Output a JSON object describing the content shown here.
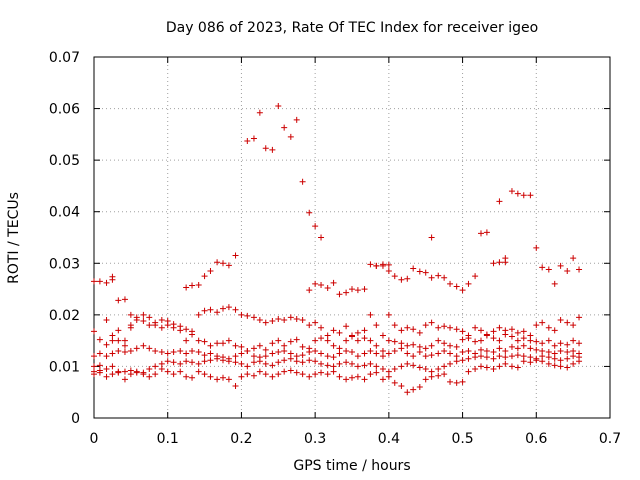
{
  "chart_data": {
    "type": "scatter",
    "title": "Day 086 of 2023, Rate Of TEC Index for receiver igeo",
    "xlabel": "GPS time / hours",
    "ylabel": "ROTI / TECUs",
    "xlim": [
      0,
      0.7
    ],
    "ylim": [
      0,
      0.07
    ],
    "x_ticks": [
      "0",
      "0.1",
      "0.2",
      "0.3",
      "0.4",
      "0.5",
      "0.6",
      "0.7"
    ],
    "y_ticks": [
      "0",
      "0.01",
      "0.02",
      "0.03",
      "0.04",
      "0.05",
      "0.06",
      "0.07"
    ],
    "grid": true,
    "marker": "+",
    "color": "#cc0000",
    "series": [
      {
        "x": [
          0.0,
          0.008,
          0.017,
          0.025,
          0.025,
          0.033,
          0.042,
          0.05,
          0.125,
          0.133,
          0.142,
          0.15,
          0.158,
          0.167,
          0.175,
          0.183,
          0.192,
          0.208,
          0.217,
          0.225,
          0.233,
          0.242,
          0.25,
          0.258,
          0.267,
          0.275,
          0.283,
          0.292,
          0.3,
          0.308,
          0.292,
          0.3,
          0.308,
          0.317,
          0.325,
          0.333,
          0.342,
          0.35,
          0.358,
          0.367,
          0.375,
          0.383,
          0.392,
          0.4,
          0.383,
          0.392,
          0.4,
          0.408,
          0.417,
          0.425,
          0.433,
          0.442,
          0.45,
          0.458,
          0.458,
          0.467,
          0.475,
          0.483,
          0.492,
          0.5,
          0.508,
          0.517,
          0.525,
          0.533,
          0.542,
          0.55,
          0.558,
          0.55,
          0.558,
          0.567,
          0.575,
          0.583,
          0.592,
          0.6,
          0.608,
          0.617,
          0.625,
          0.633,
          0.642,
          0.65,
          0.658,
          0.0,
          0.008,
          0.017,
          0.025,
          0.033,
          0.042,
          0.05,
          0.058,
          0.067,
          0.075,
          0.083,
          0.092,
          0.1,
          0.108,
          0.117,
          0.125,
          0.133,
          0.142,
          0.15,
          0.158,
          0.167,
          0.175,
          0.183,
          0.192,
          0.2,
          0.208,
          0.217,
          0.225,
          0.233,
          0.242,
          0.25,
          0.258,
          0.267,
          0.275,
          0.283,
          0.292,
          0.3,
          0.308,
          0.317,
          0.325,
          0.333,
          0.342,
          0.35,
          0.358,
          0.367,
          0.375,
          0.383,
          0.392,
          0.4,
          0.408,
          0.417,
          0.425,
          0.433,
          0.442,
          0.45,
          0.458,
          0.467,
          0.475,
          0.483,
          0.492,
          0.5,
          0.508,
          0.517,
          0.525,
          0.533,
          0.542,
          0.55,
          0.558,
          0.567,
          0.575,
          0.583,
          0.592,
          0.6,
          0.608,
          0.617,
          0.625,
          0.633,
          0.642,
          0.65,
          0.658,
          0.0,
          0.008,
          0.017,
          0.025,
          0.033,
          0.042,
          0.05,
          0.058,
          0.067,
          0.075,
          0.083,
          0.092,
          0.1,
          0.108,
          0.117,
          0.125,
          0.133,
          0.142,
          0.15,
          0.158,
          0.167,
          0.175,
          0.183,
          0.192,
          0.2,
          0.208,
          0.217,
          0.225,
          0.233,
          0.242,
          0.25,
          0.258,
          0.267,
          0.275,
          0.283,
          0.292,
          0.3,
          0.308,
          0.317,
          0.325,
          0.333,
          0.342,
          0.35,
          0.358,
          0.367,
          0.375,
          0.383,
          0.392,
          0.4,
          0.408,
          0.417,
          0.425,
          0.433,
          0.442,
          0.45,
          0.458,
          0.467,
          0.475,
          0.483,
          0.492,
          0.5,
          0.508,
          0.517,
          0.525,
          0.533,
          0.542,
          0.55,
          0.558,
          0.567,
          0.575,
          0.583,
          0.592,
          0.6,
          0.608,
          0.617,
          0.625,
          0.633,
          0.642,
          0.65,
          0.658,
          0.0,
          0.008,
          0.017,
          0.025,
          0.033,
          0.042,
          0.05,
          0.058,
          0.067,
          0.075,
          0.083,
          0.092,
          0.1,
          0.108,
          0.117,
          0.125,
          0.133,
          0.142,
          0.15,
          0.158,
          0.167,
          0.175,
          0.183,
          0.192,
          0.2,
          0.208,
          0.217,
          0.225,
          0.233,
          0.242,
          0.25,
          0.258,
          0.267,
          0.275,
          0.283,
          0.292,
          0.3,
          0.308,
          0.317,
          0.325,
          0.333,
          0.342,
          0.35,
          0.358,
          0.367,
          0.375,
          0.383,
          0.392,
          0.4,
          0.408,
          0.417,
          0.425,
          0.433,
          0.442,
          0.45,
          0.458,
          0.467,
          0.475,
          0.483,
          0.492,
          0.5,
          0.508,
          0.517,
          0.525,
          0.533,
          0.542,
          0.55,
          0.558,
          0.567,
          0.575,
          0.583,
          0.592,
          0.6,
          0.608,
          0.617,
          0.625,
          0.633,
          0.642,
          0.65,
          0.658,
          0.0,
          0.008,
          0.017,
          0.025,
          0.033,
          0.042,
          0.05,
          0.058,
          0.067,
          0.075,
          0.083,
          0.092,
          0.1,
          0.108,
          0.117,
          0.125,
          0.133,
          0.142,
          0.15,
          0.158,
          0.167,
          0.175,
          0.183,
          0.192,
          0.2,
          0.208,
          0.217,
          0.225,
          0.233,
          0.242,
          0.25,
          0.258,
          0.267,
          0.275,
          0.283,
          0.292,
          0.3,
          0.308,
          0.317,
          0.325,
          0.333,
          0.342,
          0.35,
          0.358,
          0.367,
          0.375,
          0.383,
          0.392,
          0.4,
          0.408,
          0.417,
          0.425,
          0.433,
          0.442,
          0.45,
          0.458,
          0.467,
          0.475,
          0.483,
          0.492,
          0.5,
          0.508,
          0.517,
          0.525,
          0.533,
          0.542,
          0.55,
          0.558,
          0.567,
          0.575,
          0.583,
          0.592,
          0.6,
          0.608,
          0.617,
          0.625,
          0.633,
          0.642,
          0.65,
          0.658,
          0.0,
          0.008,
          0.017,
          0.025,
          0.033,
          0.042,
          0.05,
          0.058,
          0.067,
          0.075,
          0.083,
          0.092,
          0.1,
          0.108,
          0.117,
          0.125,
          0.133,
          0.142,
          0.15,
          0.158,
          0.167,
          0.175,
          0.183,
          0.192,
          0.2,
          0.208,
          0.217,
          0.225,
          0.233,
          0.242,
          0.25,
          0.258,
          0.267,
          0.275,
          0.283,
          0.292,
          0.3,
          0.308,
          0.317,
          0.325,
          0.333,
          0.342,
          0.35,
          0.358,
          0.367,
          0.375,
          0.383,
          0.392,
          0.4,
          0.408,
          0.417,
          0.425,
          0.433,
          0.442,
          0.45,
          0.458,
          0.467,
          0.475,
          0.483,
          0.492,
          0.5,
          0.508,
          0.517,
          0.525,
          0.533,
          0.542,
          0.55,
          0.558,
          0.567,
          0.575,
          0.583,
          0.592,
          0.6,
          0.608,
          0.617,
          0.625,
          0.633,
          0.642,
          0.65,
          0.658
        ],
        "y": [
          0.0265,
          0.0265,
          0.0262,
          0.0268,
          0.0274,
          0.0228,
          0.023,
          0.02,
          0.0253,
          0.0257,
          0.0258,
          0.0275,
          0.0285,
          0.0302,
          0.03,
          0.0296,
          0.0315,
          0.0537,
          0.0542,
          0.0592,
          0.0523,
          0.052,
          0.0605,
          0.0563,
          0.0545,
          0.0578,
          0.0458,
          0.0398,
          0.0372,
          0.035,
          0.0248,
          0.026,
          0.0258,
          0.0252,
          0.0262,
          0.024,
          0.0243,
          0.025,
          0.0248,
          0.025,
          0.0298,
          0.0295,
          0.0298,
          0.0285,
          0.0295,
          0.0295,
          0.0297,
          0.0275,
          0.0268,
          0.027,
          0.029,
          0.0284,
          0.0282,
          0.035,
          0.0272,
          0.0276,
          0.0272,
          0.026,
          0.0255,
          0.0248,
          0.026,
          0.0275,
          0.0358,
          0.036,
          0.03,
          0.0302,
          0.031,
          0.042,
          0.0302,
          0.044,
          0.0435,
          0.0432,
          0.0432,
          0.033,
          0.0292,
          0.0288,
          0.026,
          0.0295,
          0.0285,
          0.031,
          0.0288,
          0.0168,
          0.0152,
          0.0142,
          0.015,
          0.017,
          0.014,
          0.0175,
          0.019,
          0.0188,
          0.018,
          0.018,
          0.0175,
          0.0188,
          0.0182,
          0.017,
          0.015,
          0.0162,
          0.02,
          0.0208,
          0.021,
          0.0205,
          0.0212,
          0.0215,
          0.021,
          0.02,
          0.0198,
          0.0195,
          0.019,
          0.0185,
          0.0188,
          0.0192,
          0.019,
          0.0195,
          0.0192,
          0.019,
          0.018,
          0.0185,
          0.0175,
          0.016,
          0.017,
          0.0165,
          0.0178,
          0.016,
          0.0165,
          0.017,
          0.02,
          0.018,
          0.016,
          0.02,
          0.018,
          0.017,
          0.0175,
          0.0172,
          0.0165,
          0.018,
          0.0185,
          0.0175,
          0.0178,
          0.0175,
          0.0172,
          0.0168,
          0.016,
          0.0175,
          0.017,
          0.0162,
          0.0168,
          0.0175,
          0.017,
          0.0172,
          0.0165,
          0.0168,
          0.016,
          0.018,
          0.0185,
          0.0175,
          0.017,
          0.019,
          0.0185,
          0.018,
          0.0195,
          0.012,
          0.0125,
          0.019,
          0.016,
          0.015,
          0.015,
          0.018,
          0.0195,
          0.02,
          0.0195,
          0.0185,
          0.019,
          0.018,
          0.0175,
          0.0178,
          0.0172,
          0.0168,
          0.015,
          0.0148,
          0.014,
          0.0145,
          0.0145,
          0.015,
          0.014,
          0.0138,
          0.013,
          0.0135,
          0.014,
          0.0132,
          0.0145,
          0.015,
          0.014,
          0.0148,
          0.0152,
          0.0138,
          0.0135,
          0.015,
          0.0155,
          0.015,
          0.014,
          0.0135,
          0.015,
          0.0158,
          0.015,
          0.0155,
          0.015,
          0.014,
          0.013,
          0.015,
          0.0148,
          0.0145,
          0.014,
          0.0142,
          0.0138,
          0.0135,
          0.014,
          0.015,
          0.0145,
          0.014,
          0.0138,
          0.0152,
          0.0155,
          0.0148,
          0.015,
          0.016,
          0.0155,
          0.015,
          0.0162,
          0.0158,
          0.015,
          0.0155,
          0.015,
          0.0148,
          0.0145,
          0.015,
          0.014,
          0.0145,
          0.0142,
          0.015,
          0.0145,
          0.01,
          0.0102,
          0.012,
          0.0125,
          0.013,
          0.0128,
          0.013,
          0.0135,
          0.014,
          0.0135,
          0.013,
          0.0128,
          0.0125,
          0.0128,
          0.013,
          0.0125,
          0.013,
          0.0128,
          0.0122,
          0.0125,
          0.012,
          0.0118,
          0.0115,
          0.012,
          0.0125,
          0.013,
          0.012,
          0.0118,
          0.012,
          0.0125,
          0.0128,
          0.013,
          0.0125,
          0.012,
          0.0122,
          0.0128,
          0.013,
          0.0125,
          0.012,
          0.0118,
          0.0125,
          0.013,
          0.0128,
          0.012,
          0.0125,
          0.013,
          0.0125,
          0.012,
          0.0125,
          0.013,
          0.0135,
          0.0125,
          0.012,
          0.0128,
          0.012,
          0.0122,
          0.0125,
          0.013,
          0.0125,
          0.012,
          0.0128,
          0.013,
          0.0125,
          0.0132,
          0.013,
          0.0128,
          0.0135,
          0.013,
          0.0138,
          0.0135,
          0.014,
          0.0135,
          0.0132,
          0.013,
          0.0128,
          0.0125,
          0.013,
          0.0128,
          0.013,
          0.0125,
          0.009,
          0.0088,
          0.0095,
          0.01,
          0.0088,
          0.009,
          0.0092,
          0.0088,
          0.0085,
          0.0095,
          0.01,
          0.0105,
          0.011,
          0.0108,
          0.0105,
          0.011,
          0.0108,
          0.0105,
          0.011,
          0.0112,
          0.0115,
          0.0112,
          0.011,
          0.0108,
          0.0105,
          0.01,
          0.0108,
          0.011,
          0.0105,
          0.0102,
          0.0108,
          0.0112,
          0.0115,
          0.011,
          0.0108,
          0.0112,
          0.011,
          0.0105,
          0.0102,
          0.01,
          0.0105,
          0.0108,
          0.0105,
          0.01,
          0.0102,
          0.0105,
          0.01,
          0.0095,
          0.009,
          0.0095,
          0.01,
          0.0105,
          0.0102,
          0.0098,
          0.0095,
          0.009,
          0.0095,
          0.01,
          0.0105,
          0.011,
          0.0112,
          0.0115,
          0.0118,
          0.012,
          0.0118,
          0.0115,
          0.012,
          0.0118,
          0.012,
          0.0122,
          0.012,
          0.0118,
          0.0115,
          0.012,
          0.0118,
          0.0115,
          0.0112,
          0.0115,
          0.012,
          0.0118,
          0.0085,
          0.0092,
          0.008,
          0.0085,
          0.009,
          0.0075,
          0.0085,
          0.009,
          0.0088,
          0.008,
          0.0085,
          0.0095,
          0.009,
          0.0085,
          0.009,
          0.008,
          0.0078,
          0.009,
          0.0085,
          0.008,
          0.0075,
          0.0078,
          0.0075,
          0.0062,
          0.008,
          0.0085,
          0.0082,
          0.009,
          0.0085,
          0.008,
          0.0085,
          0.009,
          0.0092,
          0.0088,
          0.0085,
          0.008,
          0.0085,
          0.0088,
          0.0085,
          0.009,
          0.008,
          0.0075,
          0.0078,
          0.008,
          0.0075,
          0.0085,
          0.0088,
          0.0075,
          0.008,
          0.0068,
          0.0062,
          0.005,
          0.0055,
          0.006,
          0.0075,
          0.008,
          0.0082,
          0.0085,
          0.007,
          0.0068,
          0.007,
          0.009,
          0.0095,
          0.01,
          0.0098,
          0.0095,
          0.01,
          0.0105,
          0.01,
          0.0098,
          0.011,
          0.0108,
          0.0112,
          0.011,
          0.0105,
          0.0102,
          0.01,
          0.0098,
          0.0105,
          0.011
        ]
      }
    ]
  }
}
